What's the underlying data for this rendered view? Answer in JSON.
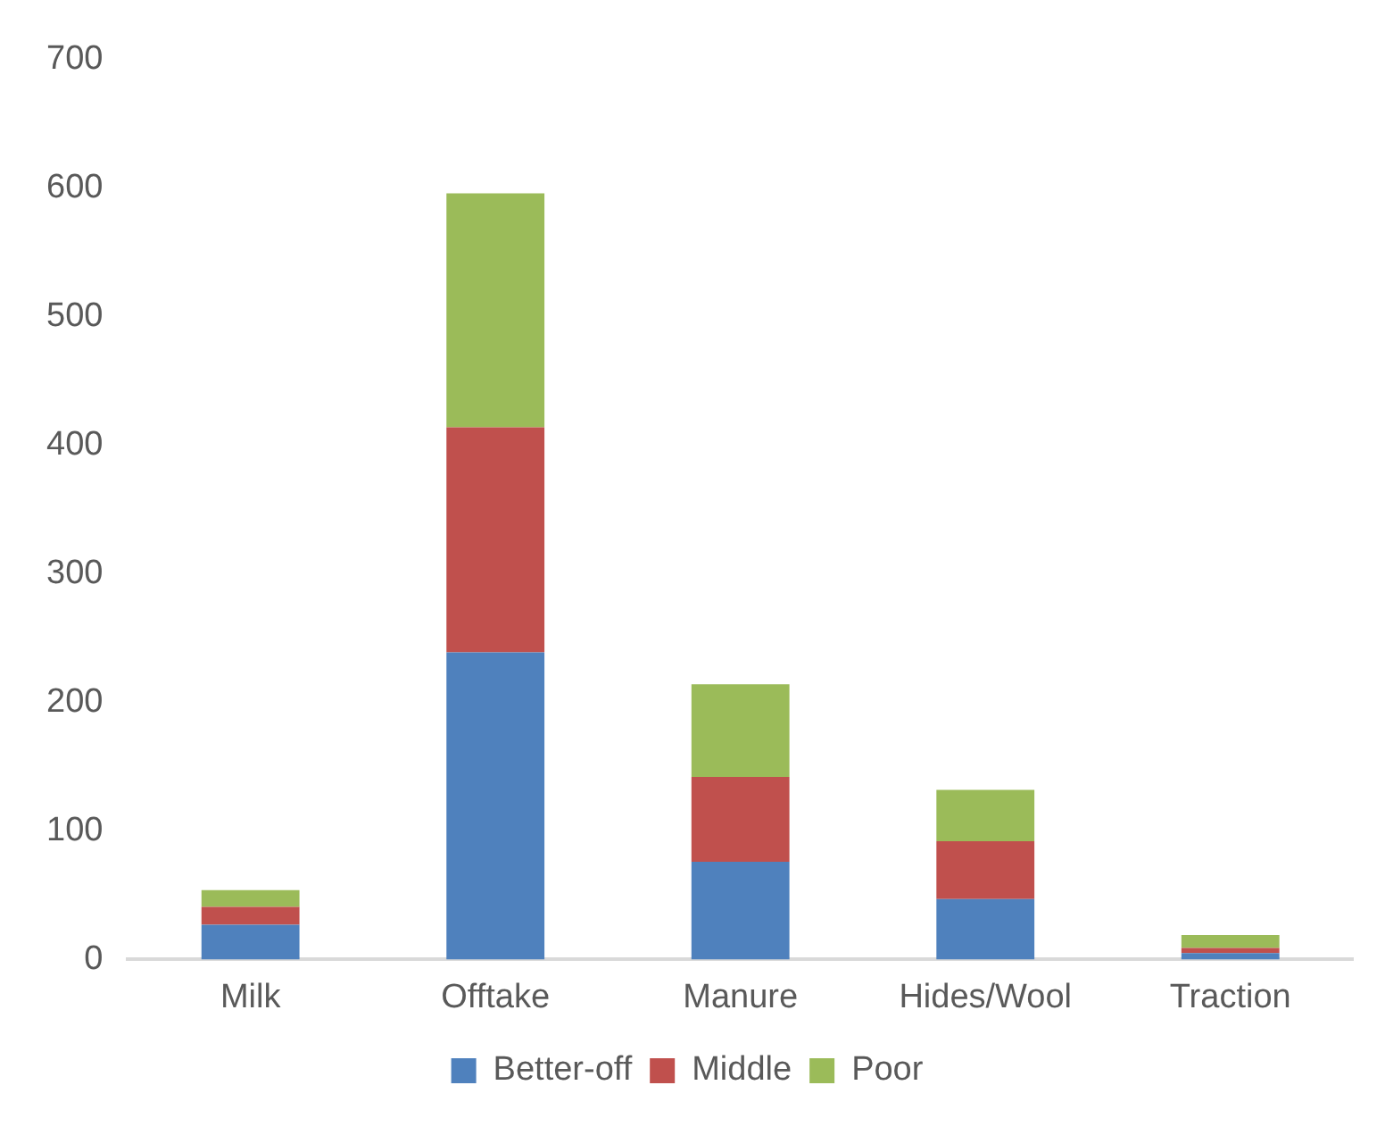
{
  "chart_data": {
    "type": "bar",
    "stacked": true,
    "categories": [
      "Milk",
      "Offtake",
      "Manure",
      "Hides/Wool",
      "Traction"
    ],
    "series": [
      {
        "name": "Better-off",
        "color": "#4f81bd",
        "values": [
          27,
          239,
          76,
          47,
          5
        ]
      },
      {
        "name": "Middle",
        "color": "#c0504d",
        "values": [
          14,
          175,
          66,
          45,
          4
        ]
      },
      {
        "name": "Poor",
        "color": "#9bbb59",
        "values": [
          13,
          182,
          72,
          40,
          10
        ]
      }
    ],
    "ylim": [
      0,
      700
    ],
    "yticks": [
      0,
      100,
      200,
      300,
      400,
      500,
      600,
      700
    ],
    "grid": false,
    "legend": "bottom"
  }
}
